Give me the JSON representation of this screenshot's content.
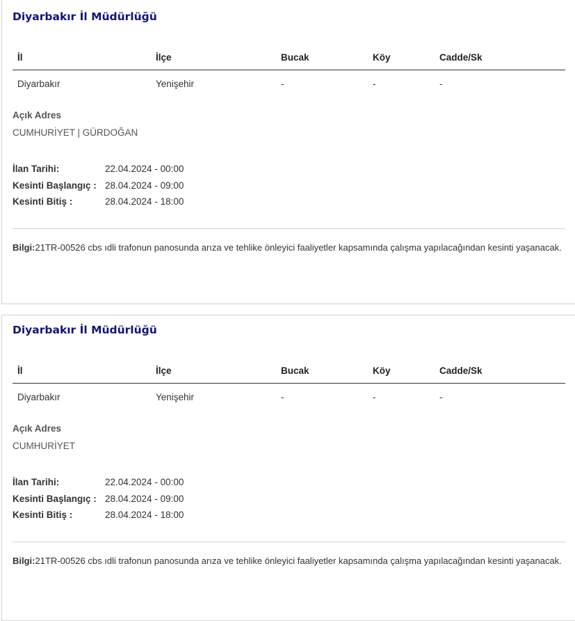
{
  "columns": [
    "İl",
    "İlçe",
    "Bucak",
    "Köy",
    "Cadde/Sk"
  ],
  "cards": [
    {
      "title": "Diyarbakır İl Müdürlüğü",
      "row": [
        "Diyarbakır",
        "Yenişehir",
        "-",
        "-",
        "-"
      ],
      "address_label": "Açık Adres",
      "address": "CUMHURİYET | GÜRDOĞAN",
      "dates": [
        {
          "label": "İlan Tarihi:",
          "value": "22.04.2024 - 00:00"
        },
        {
          "label": "Kesinti Başlangıç :",
          "value": "28.04.2024 - 09:00"
        },
        {
          "label": "Kesinti Bitiş :",
          "value": "28.04.2024 - 18:00"
        }
      ],
      "info_label": "Bilgi:",
      "info": "21TR-00526 cbs ıdli trafonun panosunda arıza ve tehlike önleyici faaliyetler kapsamında çalışma yapılacağından kesinti yaşanacak."
    },
    {
      "title": "Diyarbakır İl Müdürlüğü",
      "row": [
        "Diyarbakır",
        "Yenişehir",
        "-",
        "-",
        "-"
      ],
      "address_label": "Açık Adres",
      "address": "CUMHURİYET",
      "dates": [
        {
          "label": "İlan Tarihi:",
          "value": "22.04.2024 - 00:00"
        },
        {
          "label": "Kesinti Başlangıç :",
          "value": "28.04.2024 - 09:00"
        },
        {
          "label": "Kesinti Bitiş :",
          "value": "28.04.2024 - 18:00"
        }
      ],
      "info_label": "Bilgi:",
      "info": "21TR-00526 cbs ıdli trafonun panosunda arıza ve tehlike önleyici faaliyetler kapsamında çalışma yapılacağından kesinti yaşanacak."
    }
  ],
  "colors": {
    "title": "#141470",
    "border": "#d0d0d0"
  }
}
